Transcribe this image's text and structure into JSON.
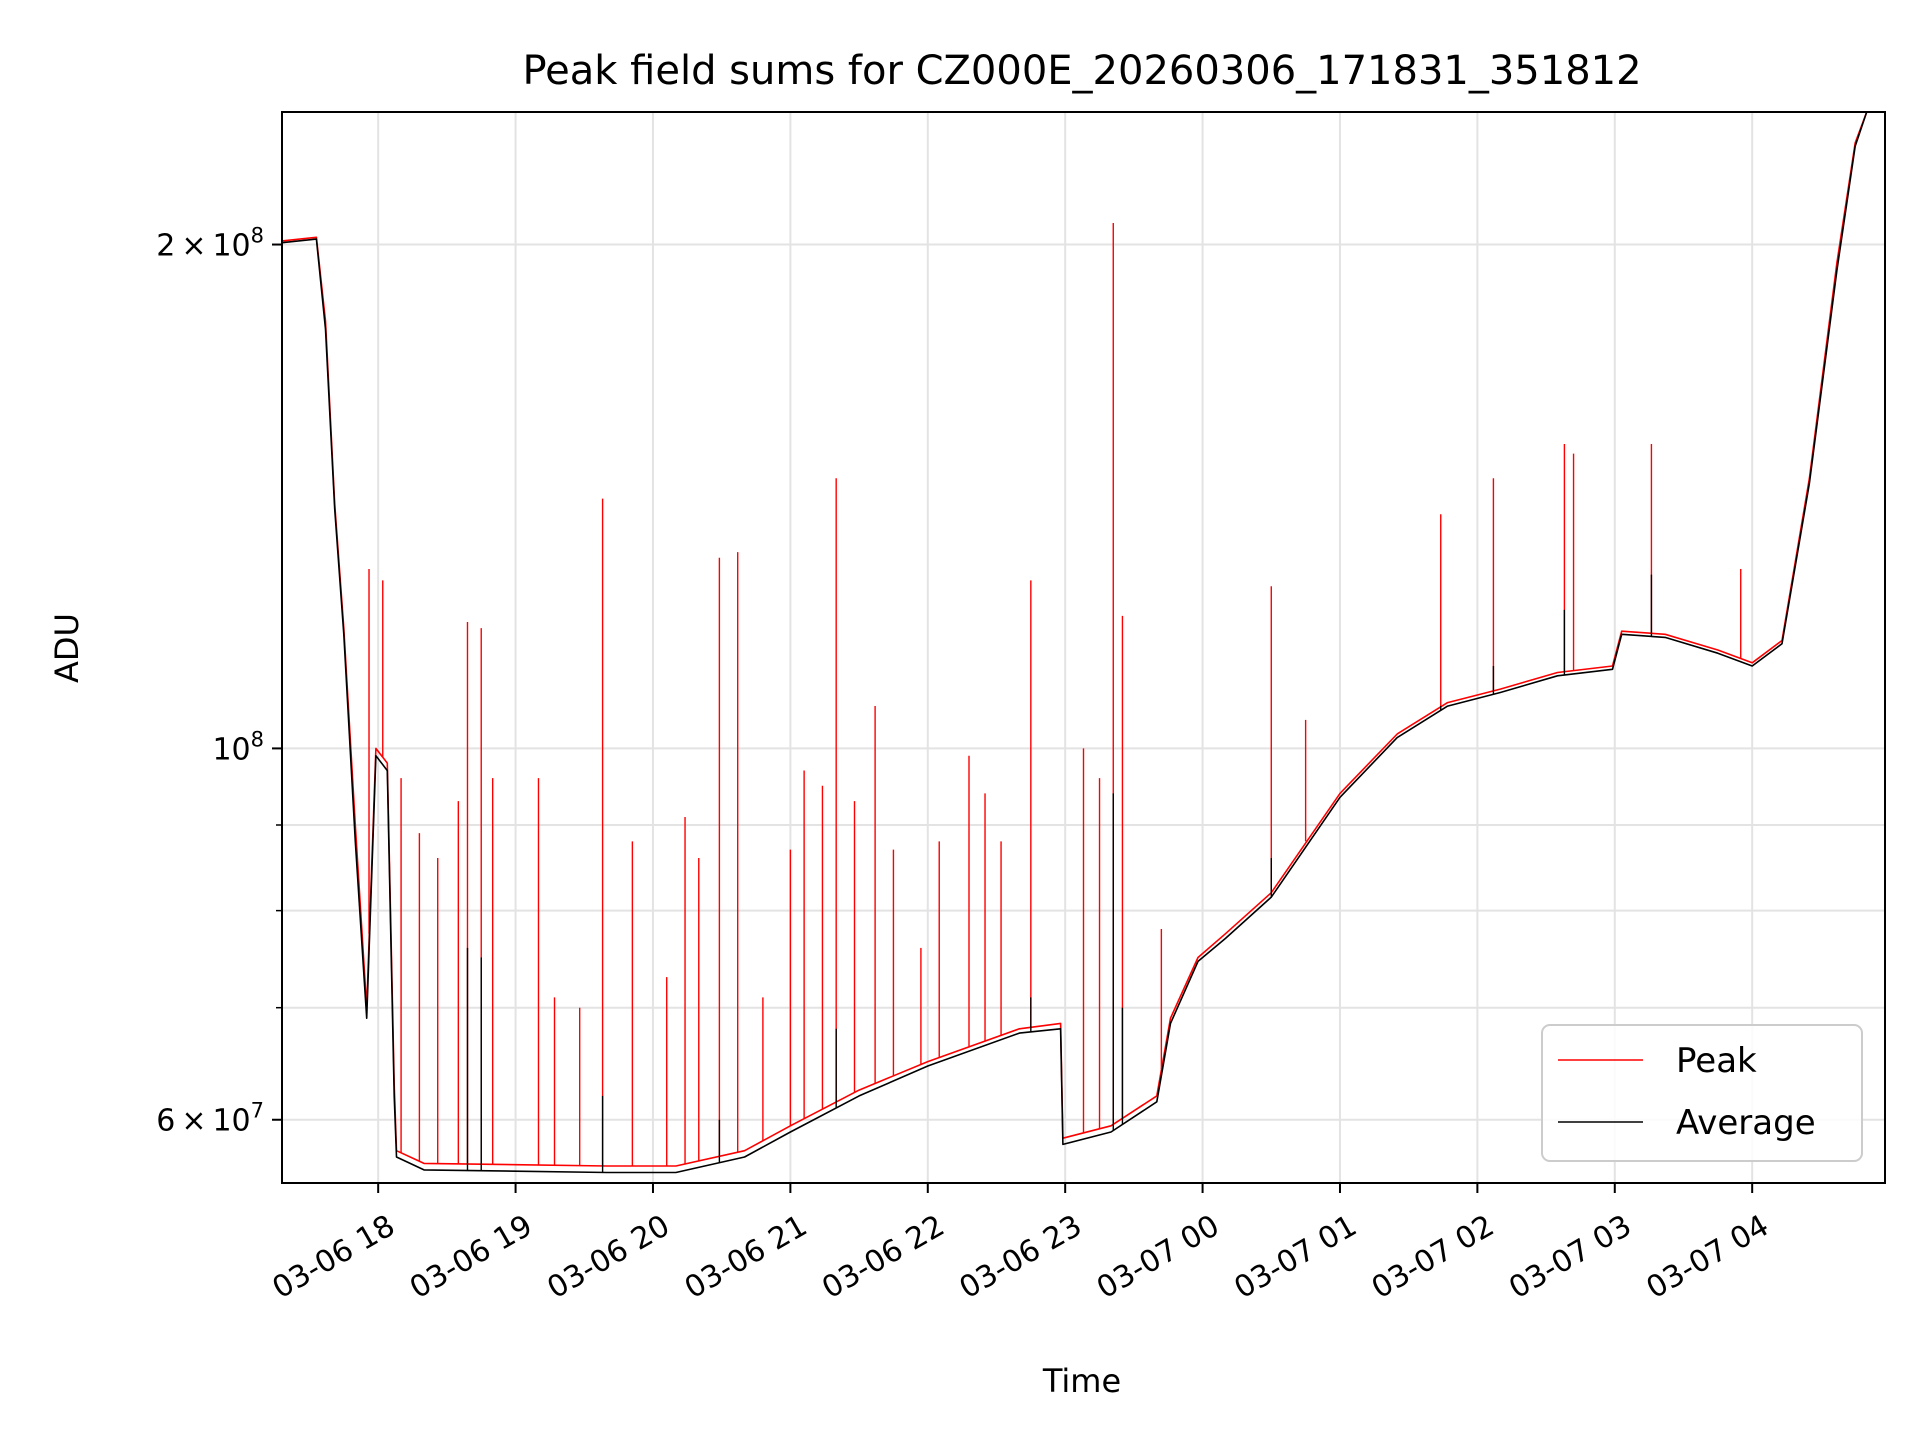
{
  "chart_data": {
    "type": "line",
    "title": "Peak field sums for CZ000E_20260306_171831_351812",
    "xlabel": "Time",
    "ylabel": "ADU",
    "yscale": "log",
    "grid": true,
    "legend_placement": "lower-right",
    "x_range": [
      "2026-03-06 17:18",
      "2026-03-07 04:58"
    ],
    "y_range": [
      55000000,
      240000000
    ],
    "x_ticks": [
      {
        "time": "2026-03-06 18:00",
        "label": "03-06 18"
      },
      {
        "time": "2026-03-06 19:00",
        "label": "03-06 19"
      },
      {
        "time": "2026-03-06 20:00",
        "label": "03-06 20"
      },
      {
        "time": "2026-03-06 21:00",
        "label": "03-06 21"
      },
      {
        "time": "2026-03-06 22:00",
        "label": "03-06 22"
      },
      {
        "time": "2026-03-06 23:00",
        "label": "03-06 23"
      },
      {
        "time": "2026-03-07 00:00",
        "label": "03-07 00"
      },
      {
        "time": "2026-03-07 01:00",
        "label": "03-07 01"
      },
      {
        "time": "2026-03-07 02:00",
        "label": "03-07 02"
      },
      {
        "time": "2026-03-07 03:00",
        "label": "03-07 03"
      },
      {
        "time": "2026-03-07 04:00",
        "label": "03-07 04"
      }
    ],
    "y_major_ticks": [
      {
        "value": 60000000,
        "mant": "6",
        "exp": "7"
      },
      {
        "value": 100000000,
        "mant": "",
        "exp": "8"
      },
      {
        "value": 200000000,
        "mant": "2",
        "exp": "8"
      }
    ],
    "y_minor_ticks": [
      70000000,
      80000000,
      90000000
    ],
    "series": [
      {
        "name": "Peak",
        "color": "#ff0000",
        "baseline": [
          [
            "2026-03-06 17:18",
            201000000
          ],
          [
            "2026-03-06 17:33",
            202000000
          ],
          [
            "2026-03-06 17:37",
            180000000
          ],
          [
            "2026-03-06 17:41",
            140000000
          ],
          [
            "2026-03-06 17:45",
            118000000
          ],
          [
            "2026-03-06 17:50",
            90000000
          ],
          [
            "2026-03-06 17:55",
            70000000
          ],
          [
            "2026-03-06 17:59",
            100000000
          ],
          [
            "2026-03-06 18:04",
            98000000
          ],
          [
            "2026-03-06 18:07",
            63000000
          ],
          [
            "2026-03-06 18:08",
            57500000
          ],
          [
            "2026-03-06 18:20",
            56500000
          ],
          [
            "2026-03-06 19:00",
            56400000
          ],
          [
            "2026-03-06 19:40",
            56300000
          ],
          [
            "2026-03-06 20:10",
            56300000
          ],
          [
            "2026-03-06 20:40",
            57500000
          ],
          [
            "2026-03-06 21:00",
            59500000
          ],
          [
            "2026-03-06 21:30",
            62500000
          ],
          [
            "2026-03-06 22:00",
            65000000
          ],
          [
            "2026-03-06 22:40",
            68000000
          ],
          [
            "2026-03-06 22:58",
            68500000
          ],
          [
            "2026-03-06 22:59",
            58500000
          ],
          [
            "2026-03-06 23:20",
            59500000
          ],
          [
            "2026-03-06 23:40",
            62000000
          ],
          [
            "2026-03-06 23:46",
            69000000
          ],
          [
            "2026-03-06 23:58",
            75000000
          ],
          [
            "2026-03-07 00:10",
            77500000
          ],
          [
            "2026-03-07 00:30",
            82000000
          ],
          [
            "2026-03-07 01:00",
            94000000
          ],
          [
            "2026-03-07 01:25",
            102000000
          ],
          [
            "2026-03-07 01:47",
            106500000
          ],
          [
            "2026-03-07 02:10",
            108500000
          ],
          [
            "2026-03-07 02:35",
            111000000
          ],
          [
            "2026-03-07 02:59",
            112000000
          ],
          [
            "2026-03-07 03:03",
            117500000
          ],
          [
            "2026-03-07 03:22",
            117000000
          ],
          [
            "2026-03-07 03:45",
            114500000
          ],
          [
            "2026-03-07 04:00",
            112500000
          ],
          [
            "2026-03-07 04:13",
            116000000
          ],
          [
            "2026-03-07 04:25",
            145000000
          ],
          [
            "2026-03-07 04:37",
            195000000
          ],
          [
            "2026-03-07 04:45",
            230000000
          ],
          [
            "2026-03-07 04:50",
            240000000
          ],
          [
            "2026-03-07 04:58",
            240000000
          ]
        ],
        "spikes": [
          [
            "2026-03-06 17:56",
            128000000
          ],
          [
            "2026-03-06 18:02",
            126000000
          ],
          [
            "2026-03-06 18:10",
            96000000
          ],
          [
            "2026-03-06 18:18",
            89000000
          ],
          [
            "2026-03-06 18:26",
            86000000
          ],
          [
            "2026-03-06 18:35",
            93000000
          ],
          [
            "2026-03-06 18:39",
            119000000
          ],
          [
            "2026-03-06 18:45",
            118000000
          ],
          [
            "2026-03-06 18:50",
            96000000
          ],
          [
            "2026-03-06 19:10",
            96000000
          ],
          [
            "2026-03-06 19:17",
            71000000
          ],
          [
            "2026-03-06 19:28",
            70000000
          ],
          [
            "2026-03-06 19:38",
            141000000
          ],
          [
            "2026-03-06 19:51",
            88000000
          ],
          [
            "2026-03-06 20:06",
            73000000
          ],
          [
            "2026-03-06 20:14",
            91000000
          ],
          [
            "2026-03-06 20:20",
            86000000
          ],
          [
            "2026-03-06 20:29",
            130000000
          ],
          [
            "2026-03-06 20:37",
            131000000
          ],
          [
            "2026-03-06 20:48",
            71000000
          ],
          [
            "2026-03-06 21:00",
            87000000
          ],
          [
            "2026-03-06 21:06",
            97000000
          ],
          [
            "2026-03-06 21:14",
            95000000
          ],
          [
            "2026-03-06 21:20",
            145000000
          ],
          [
            "2026-03-06 21:28",
            93000000
          ],
          [
            "2026-03-06 21:37",
            106000000
          ],
          [
            "2026-03-06 21:45",
            87000000
          ],
          [
            "2026-03-06 21:57",
            76000000
          ],
          [
            "2026-03-06 22:05",
            88000000
          ],
          [
            "2026-03-06 22:18",
            99000000
          ],
          [
            "2026-03-06 22:25",
            94000000
          ],
          [
            "2026-03-06 22:32",
            88000000
          ],
          [
            "2026-03-06 22:45",
            126000000
          ],
          [
            "2026-03-06 23:08",
            100000000
          ],
          [
            "2026-03-06 23:15",
            96000000
          ],
          [
            "2026-03-06 23:21",
            206000000
          ],
          [
            "2026-03-06 23:25",
            120000000
          ],
          [
            "2026-03-06 23:42",
            78000000
          ],
          [
            "2026-03-07 00:21",
            80000000
          ],
          [
            "2026-03-07 00:30",
            125000000
          ],
          [
            "2026-03-07 00:45",
            104000000
          ],
          [
            "2026-03-07 01:44",
            138000000
          ],
          [
            "2026-03-07 02:07",
            145000000
          ],
          [
            "2026-03-07 02:38",
            152000000
          ],
          [
            "2026-03-07 02:42",
            150000000
          ],
          [
            "2026-03-07 03:16",
            152000000
          ],
          [
            "2026-03-07 03:55",
            128000000
          ]
        ]
      },
      {
        "name": "Average",
        "color": "#000000",
        "baseline": [
          [
            "2026-03-06 17:18",
            200500000
          ],
          [
            "2026-03-06 17:33",
            201500000
          ],
          [
            "2026-03-06 17:37",
            178000000
          ],
          [
            "2026-03-06 17:41",
            139000000
          ],
          [
            "2026-03-06 17:45",
            117000000
          ],
          [
            "2026-03-06 17:50",
            88000000
          ],
          [
            "2026-03-06 17:55",
            69000000
          ],
          [
            "2026-03-06 17:59",
            99000000
          ],
          [
            "2026-03-06 18:04",
            97000000
          ],
          [
            "2026-03-06 18:07",
            62000000
          ],
          [
            "2026-03-06 18:08",
            57000000
          ],
          [
            "2026-03-06 18:20",
            56000000
          ],
          [
            "2026-03-06 19:00",
            55900000
          ],
          [
            "2026-03-06 19:40",
            55800000
          ],
          [
            "2026-03-06 20:10",
            55800000
          ],
          [
            "2026-03-06 20:40",
            57000000
          ],
          [
            "2026-03-06 21:00",
            59000000
          ],
          [
            "2026-03-06 21:30",
            62000000
          ],
          [
            "2026-03-06 22:00",
            64600000
          ],
          [
            "2026-03-06 22:40",
            67600000
          ],
          [
            "2026-03-06 22:58",
            68000000
          ],
          [
            "2026-03-06 22:59",
            58000000
          ],
          [
            "2026-03-06 23:20",
            59000000
          ],
          [
            "2026-03-06 23:40",
            61500000
          ],
          [
            "2026-03-06 23:46",
            68500000
          ],
          [
            "2026-03-06 23:58",
            74600000
          ],
          [
            "2026-03-07 00:10",
            77000000
          ],
          [
            "2026-03-07 00:30",
            81500000
          ],
          [
            "2026-03-07 01:00",
            93500000
          ],
          [
            "2026-03-07 01:25",
            101500000
          ],
          [
            "2026-03-07 01:47",
            106000000
          ],
          [
            "2026-03-07 02:10",
            108000000
          ],
          [
            "2026-03-07 02:35",
            110500000
          ],
          [
            "2026-03-07 02:59",
            111500000
          ],
          [
            "2026-03-07 03:03",
            117000000
          ],
          [
            "2026-03-07 03:22",
            116500000
          ],
          [
            "2026-03-07 03:45",
            114000000
          ],
          [
            "2026-03-07 04:00",
            112000000
          ],
          [
            "2026-03-07 04:13",
            115500000
          ],
          [
            "2026-03-07 04:25",
            144000000
          ],
          [
            "2026-03-07 04:37",
            193000000
          ],
          [
            "2026-03-07 04:45",
            229000000
          ],
          [
            "2026-03-07 04:50",
            240000000
          ],
          [
            "2026-03-07 04:58",
            240000000
          ]
        ],
        "spikes": [
          [
            "2026-03-06 18:39",
            76000000
          ],
          [
            "2026-03-06 18:45",
            75000000
          ],
          [
            "2026-03-06 19:38",
            62000000
          ],
          [
            "2026-03-06 20:29",
            60000000
          ],
          [
            "2026-03-06 21:20",
            68000000
          ],
          [
            "2026-03-06 22:45",
            71000000
          ],
          [
            "2026-03-06 23:21",
            94000000
          ],
          [
            "2026-03-06 23:25",
            70000000
          ],
          [
            "2026-03-07 00:30",
            86000000
          ],
          [
            "2026-03-07 01:44",
            106000000
          ],
          [
            "2026-03-07 02:07",
            112000000
          ],
          [
            "2026-03-07 02:38",
            121000000
          ],
          [
            "2026-03-07 03:16",
            127000000
          ]
        ]
      }
    ]
  }
}
